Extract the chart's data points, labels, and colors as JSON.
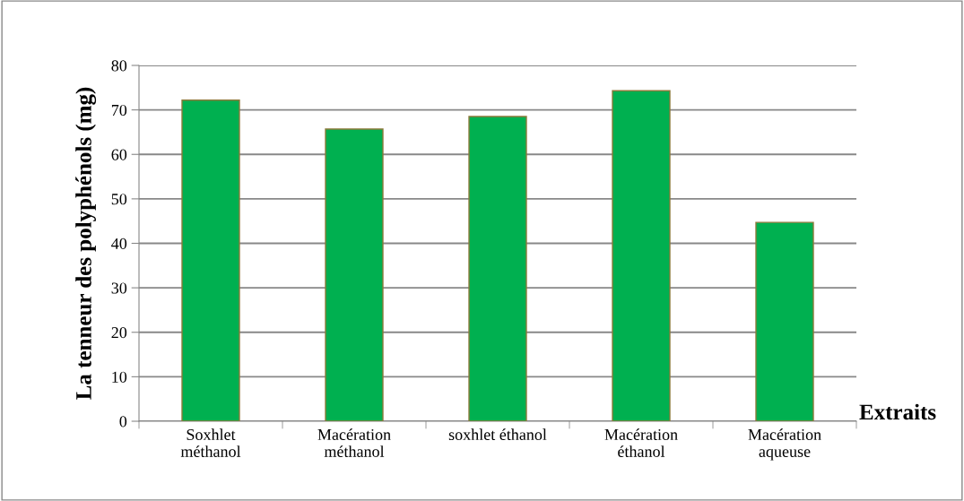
{
  "chart_data": {
    "type": "bar",
    "xlabel": "Extraits",
    "ylabel": "La tenneur des polyphénols (mg)",
    "categories": [
      "Soxhlet\nméthanol",
      "Macération\nméthanol",
      "soxhlet éthanol",
      "Macération\néthanol",
      "Macération\naqueuse"
    ],
    "values": [
      72.2,
      65.7,
      68.5,
      74.3,
      44.7
    ],
    "color": "#00b050",
    "ylim": [
      0,
      80
    ],
    "yticks": [
      0,
      10,
      20,
      30,
      40,
      50,
      60,
      70,
      80
    ],
    "grid": "y"
  }
}
